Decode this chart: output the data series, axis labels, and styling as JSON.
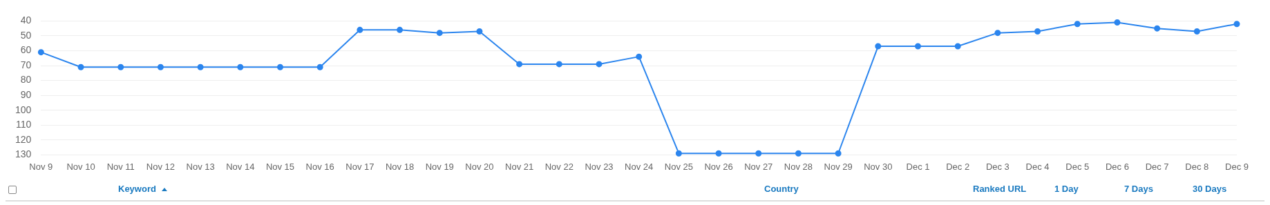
{
  "chart_data": {
    "type": "line",
    "categories": [
      "Nov 9",
      "Nov 10",
      "Nov 11",
      "Nov 12",
      "Nov 13",
      "Nov 14",
      "Nov 15",
      "Nov 16",
      "Nov 17",
      "Nov 18",
      "Nov 19",
      "Nov 20",
      "Nov 21",
      "Nov 22",
      "Nov 23",
      "Nov 24",
      "Nov 25",
      "Nov 26",
      "Nov 27",
      "Nov 28",
      "Nov 29",
      "Nov 30",
      "Dec 1",
      "Dec 2",
      "Dec 3",
      "Dec 4",
      "Dec 5",
      "Dec 6",
      "Dec 7",
      "Dec 8",
      "Dec 9"
    ],
    "series": [
      {
        "color": "#2b85ee",
        "values": [
          61,
          71,
          71,
          71,
          71,
          71,
          71,
          71,
          46,
          46,
          48,
          47,
          69,
          69,
          69,
          64,
          129,
          129,
          129,
          129,
          129,
          57,
          57,
          57,
          48,
          47,
          42,
          41,
          45,
          47,
          42
        ]
      }
    ],
    "ylim": [
      130,
      40
    ],
    "yticks": [
      40,
      50,
      60,
      70,
      80,
      90,
      100,
      110,
      120,
      130
    ],
    "grid": "y",
    "marker": "circle",
    "line_style": "solid",
    "annotations": [
      "Keyword",
      "Country",
      "Ranked URL",
      "1 Day",
      "7 Days",
      "30 Days"
    ]
  }
}
